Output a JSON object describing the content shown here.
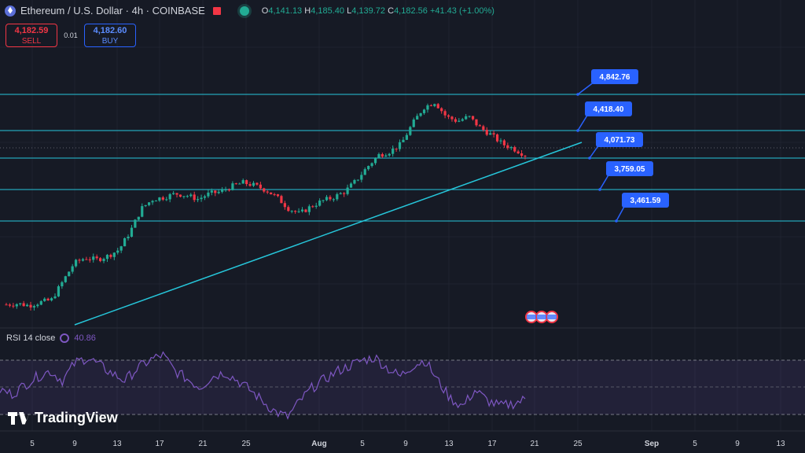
{
  "header": {
    "title": "Ethereum / U.S. Dollar · 4h · COINBASE",
    "ohlc": {
      "o_label": "O",
      "o": "4,141.13",
      "h_label": "H",
      "h": "4,185.40",
      "l_label": "L",
      "l": "4,139.72",
      "c_label": "C",
      "c": "4,182.56",
      "change": "+41.43 (+1.00%)"
    }
  },
  "trade": {
    "sell_price": "4,182.59",
    "sell_label": "SELL",
    "spread": "0.01",
    "buy_price": "4,182.60",
    "buy_label": "BUY"
  },
  "rsi": {
    "label": "RSI 14 close",
    "value": "40.86"
  },
  "brand": {
    "name": "TradingView"
  },
  "colors": {
    "bg": "#161a25",
    "up": "#22ab94",
    "down": "#f23645",
    "level": "#26c6da",
    "callout": "#2962ff",
    "rsi": "#7e57c2"
  },
  "chart_data": {
    "type": "candlestick",
    "x_ticks": [
      "5",
      "9",
      "13",
      "17",
      "21",
      "25",
      "Aug",
      "5",
      "9",
      "13",
      "17",
      "21",
      "25",
      "Sep",
      "5",
      "9",
      "13"
    ],
    "levels": [
      {
        "value": "4,842.76"
      },
      {
        "value": "4,418.40"
      },
      {
        "value": "4,071.73"
      },
      {
        "value": "3,759.05"
      },
      {
        "value": "3,461.59"
      }
    ],
    "trendline": "rising support",
    "price_path": [
      2550,
      2560,
      2540,
      2575,
      2600,
      2800,
      3000,
      3060,
      3040,
      3080,
      3150,
      3350,
      3600,
      3700,
      3720,
      3760,
      3740,
      3700,
      3760,
      3780,
      3840,
      3880,
      3850,
      3800,
      3720,
      3600,
      3540,
      3620,
      3680,
      3720,
      3780,
      3900,
      4050,
      4180,
      4220,
      4300,
      4520,
      4700,
      4760,
      4600,
      4550,
      4600,
      4480,
      4400,
      4300,
      4250,
      4182
    ],
    "rsi_path": [
      48,
      45,
      52,
      58,
      62,
      55,
      68,
      72,
      66,
      60,
      55,
      64,
      70,
      74,
      62,
      56,
      50,
      58,
      61,
      55,
      48,
      40,
      32,
      28,
      40,
      50,
      56,
      62,
      66,
      70,
      72,
      64,
      58,
      66,
      70,
      55,
      42,
      36,
      48,
      40,
      36,
      38,
      41
    ]
  }
}
